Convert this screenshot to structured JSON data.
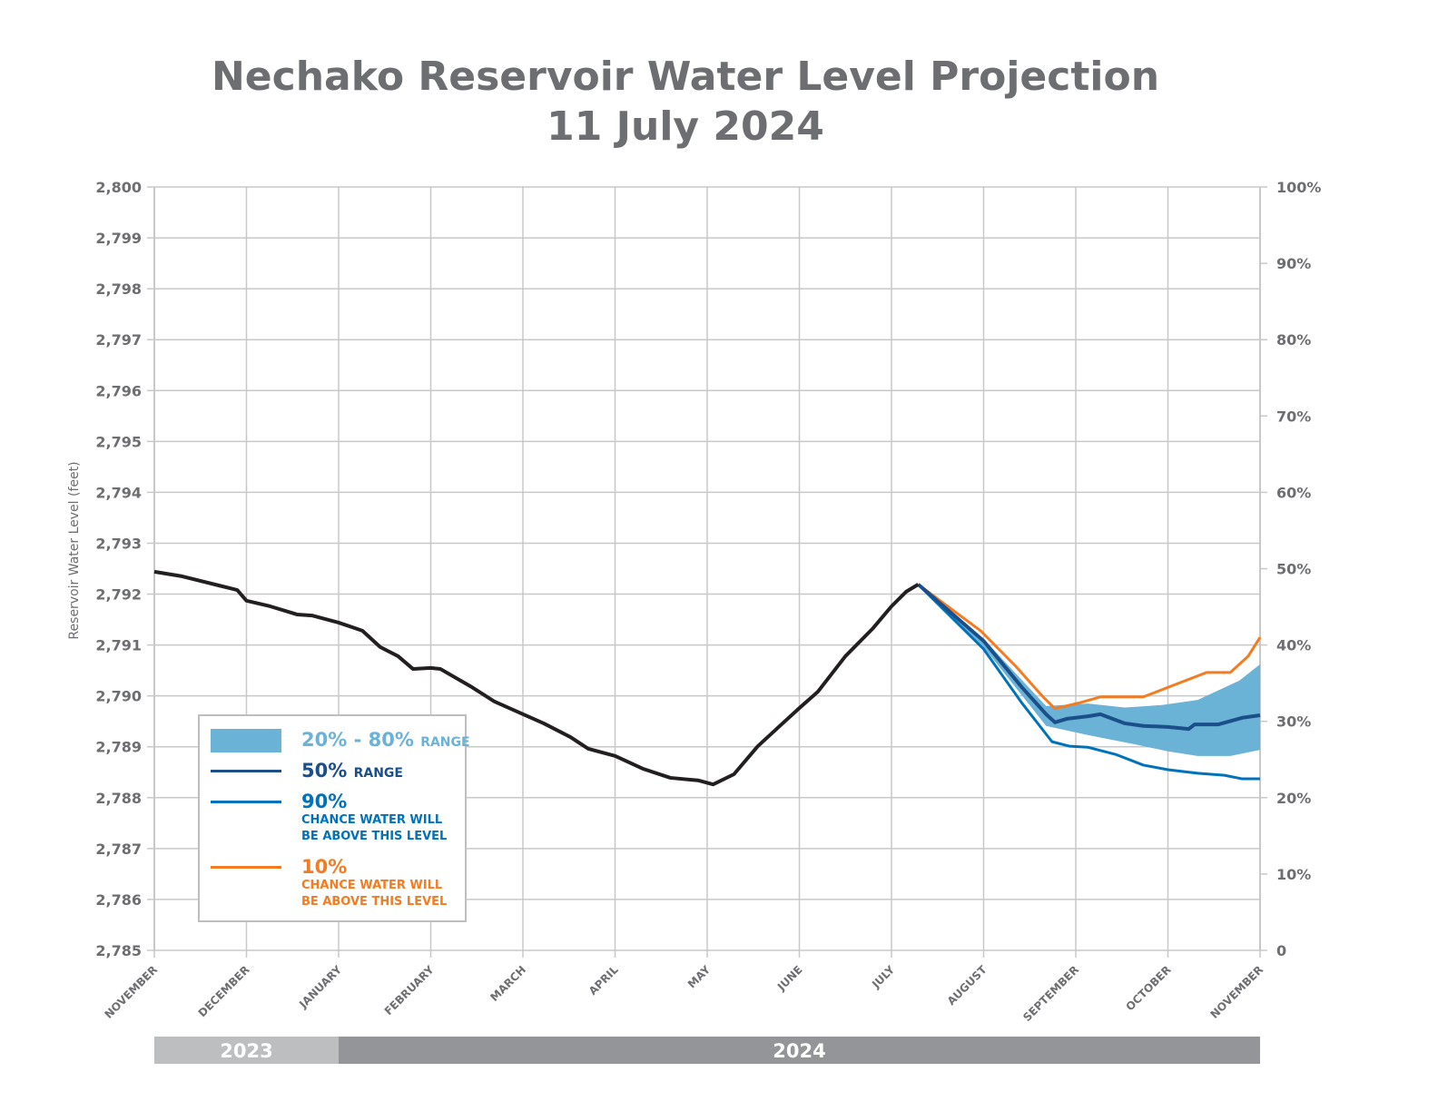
{
  "chart_data": {
    "type": "line",
    "title": "Nechako Reservoir Water Level Projection",
    "subtitle": "11 July 2024",
    "ylabel": "Reservoir Water Level (feet)",
    "ylim": [
      2785,
      2800
    ],
    "y_ticks": [
      "2,785",
      "2,786",
      "2,787",
      "2,788",
      "2,789",
      "2,790",
      "2,791",
      "2,792",
      "2,793",
      "2,794",
      "2,795",
      "2,796",
      "2,797",
      "2,798",
      "2,799",
      "2,800"
    ],
    "y2lim": [
      0,
      100
    ],
    "y2_ticks": [
      "0",
      "10%",
      "20%",
      "30%",
      "40%",
      "50%",
      "60%",
      "70%",
      "80%",
      "90%",
      "100%"
    ],
    "x_ticks": [
      "NOVEMBER",
      "DECEMBER",
      "JANUARY",
      "FEBRUARY",
      "MARCH",
      "APRIL",
      "MAY",
      "JUNE",
      "JULY",
      "AUGUST",
      "SEPTEMBER",
      "OCTOBER",
      "NOVEMBER"
    ],
    "xlim": [
      "2023-11-01",
      "2024-11-01"
    ],
    "years": [
      {
        "label": "2023",
        "from": "2023-11-01",
        "to": "2024-01-01",
        "color": "#bcbec0"
      },
      {
        "label": "2024",
        "from": "2024-01-01",
        "to": "2024-11-01",
        "color": "#939598"
      }
    ],
    "grid": true,
    "legend_position": "bottom-left",
    "colors": {
      "historical": "#231f20",
      "band": "#6ab2d6",
      "p50": "#1b4f8a",
      "p90": "#0072bc",
      "p10": "#f47b20",
      "grid": "#c8c8c8",
      "axis_text": "#6d6e71"
    },
    "legend": [
      {
        "key": "band",
        "label": "20% - 80%",
        "sub": "RANGE",
        "color": "#6ab2d6"
      },
      {
        "key": "p50",
        "label": "50%",
        "sub": "RANGE",
        "color": "#1b4f8a"
      },
      {
        "key": "p90",
        "label": "90%",
        "sub": "CHANCE WATER WILL",
        "sub2": "BE ABOVE THIS LEVEL",
        "color": "#0072bc"
      },
      {
        "key": "p10",
        "label": "10%",
        "sub": "CHANCE WATER WILL",
        "sub2": "BE ABOVE THIS LEVEL",
        "color": "#f47b20"
      }
    ],
    "historical": {
      "x": [
        "2023-11-01",
        "2023-11-10",
        "2023-11-22",
        "2023-11-28",
        "2023-12-01",
        "2023-12-09",
        "2023-12-18",
        "2023-12-23",
        "2024-01-01",
        "2024-01-09",
        "2024-01-15",
        "2024-01-21",
        "2024-01-26",
        "2024-02-01",
        "2024-02-04",
        "2024-02-14",
        "2024-02-21",
        "2024-03-01",
        "2024-03-08",
        "2024-03-17",
        "2024-03-23",
        "2024-04-01",
        "2024-04-10",
        "2024-04-19",
        "2024-04-28",
        "2024-05-03",
        "2024-05-10",
        "2024-05-18",
        "2024-05-26",
        "2024-06-01",
        "2024-06-07",
        "2024-06-16",
        "2024-06-25",
        "2024-07-01",
        "2024-07-06",
        "2024-07-10"
      ],
      "y": [
        2792.44,
        2792.35,
        2792.17,
        2792.08,
        2791.87,
        2791.76,
        2791.6,
        2791.58,
        2791.44,
        2791.28,
        2790.96,
        2790.78,
        2790.53,
        2790.55,
        2790.53,
        2790.17,
        2789.89,
        2789.64,
        2789.46,
        2789.19,
        2788.96,
        2788.82,
        2788.57,
        2788.39,
        2788.34,
        2788.26,
        2788.46,
        2789.01,
        2789.44,
        2789.76,
        2790.08,
        2790.78,
        2791.33,
        2791.76,
        2792.05,
        2792.19
      ]
    },
    "band": {
      "x_upper": [
        "2024-07-10",
        "2024-08-01",
        "2024-08-22",
        "2024-09-05",
        "2024-09-17",
        "2024-09-29",
        "2024-10-11",
        "2024-10-25",
        "2024-11-01"
      ],
      "upper": [
        2792.19,
        2791.12,
        2789.8,
        2789.85,
        2789.77,
        2789.82,
        2789.92,
        2790.3,
        2790.62
      ],
      "x_lower": [
        "2024-07-10",
        "2024-08-01",
        "2024-08-22",
        "2024-09-05",
        "2024-09-20",
        "2024-10-01",
        "2024-10-11",
        "2024-10-22",
        "2024-11-01"
      ],
      "lower": [
        2792.19,
        2790.96,
        2789.41,
        2789.23,
        2789.05,
        2788.91,
        2788.82,
        2788.82,
        2788.94
      ]
    },
    "p50": {
      "x": [
        "2024-07-10",
        "2024-08-01",
        "2024-08-14",
        "2024-08-22",
        "2024-08-25",
        "2024-08-29",
        "2024-09-05",
        "2024-09-09",
        "2024-09-17",
        "2024-09-23",
        "2024-10-01",
        "2024-10-08",
        "2024-10-10",
        "2024-10-18",
        "2024-10-26",
        "2024-11-01"
      ],
      "y": [
        2792.19,
        2791.08,
        2790.16,
        2789.64,
        2789.48,
        2789.55,
        2789.6,
        2789.64,
        2789.46,
        2789.41,
        2789.39,
        2789.35,
        2789.44,
        2789.44,
        2789.57,
        2789.62
      ]
    },
    "p90": {
      "x": [
        "2024-07-10",
        "2024-08-01",
        "2024-08-14",
        "2024-08-24",
        "2024-08-30",
        "2024-09-05",
        "2024-09-14",
        "2024-09-23",
        "2024-10-01",
        "2024-10-11",
        "2024-10-20",
        "2024-10-26",
        "2024-11-01"
      ],
      "y": [
        2792.19,
        2790.92,
        2789.85,
        2789.1,
        2789.01,
        2788.99,
        2788.85,
        2788.64,
        2788.55,
        2788.48,
        2788.44,
        2788.37,
        2788.37
      ]
    },
    "p10": {
      "x": [
        "2024-07-10",
        "2024-07-31",
        "2024-08-12",
        "2024-08-21",
        "2024-08-25",
        "2024-09-02",
        "2024-09-09",
        "2024-09-23",
        "2024-10-02",
        "2024-10-14",
        "2024-10-22",
        "2024-10-28",
        "2024-11-01"
      ],
      "y": [
        2792.19,
        2791.28,
        2790.57,
        2789.98,
        2789.75,
        2789.86,
        2789.98,
        2789.98,
        2790.19,
        2790.46,
        2790.46,
        2790.78,
        2791.15
      ]
    }
  }
}
